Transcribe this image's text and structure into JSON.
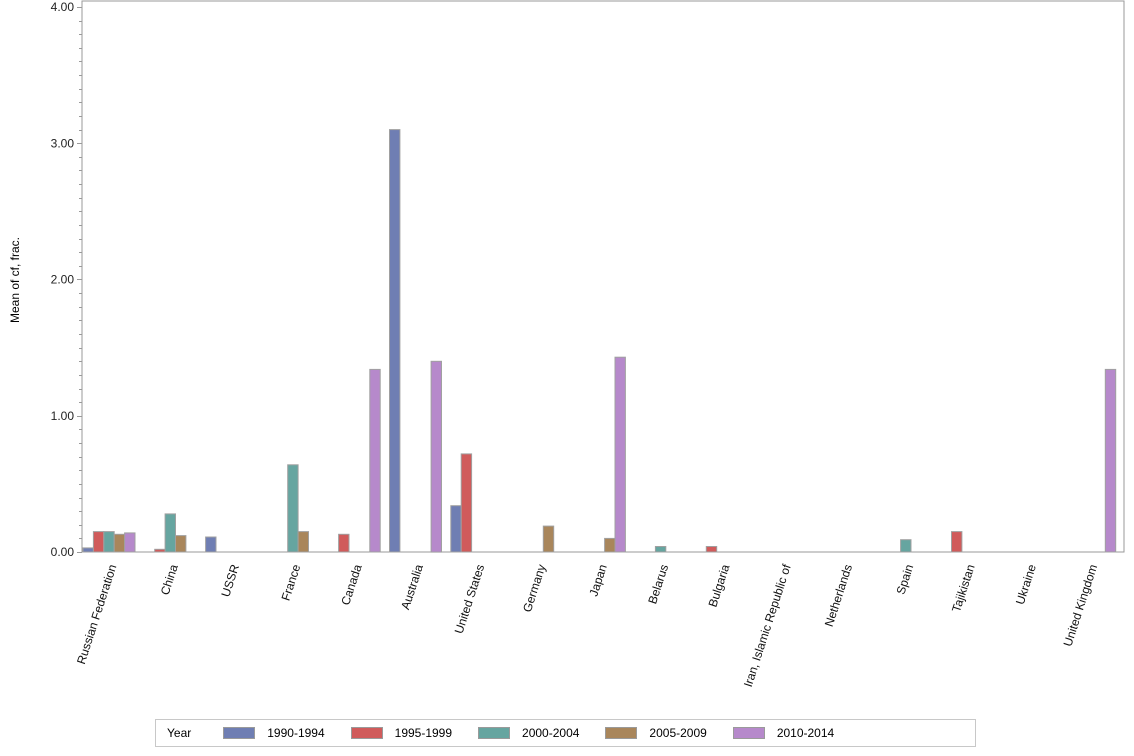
{
  "chart_data": {
    "type": "bar",
    "title": "",
    "xlabel": "",
    "ylabel": "Mean of cf, frac.",
    "ylim": [
      0,
      4
    ],
    "yticks": [
      "0.00",
      "1.00",
      "2.00",
      "3.00",
      "4.00"
    ],
    "grid": false,
    "legend_position": "bottom",
    "legend_title": "Year",
    "categories": [
      "Russian Federation",
      "China",
      "USSR",
      "France",
      "Canada",
      "Australia",
      "United States",
      "Germany",
      "Japan",
      "Belarus",
      "Bulgaria",
      "Iran, Islamic Republic of",
      "Netherlands",
      "Spain",
      "Tajikistan",
      "Ukraine",
      "United Kingdom"
    ],
    "series": [
      {
        "name": "1990-1994",
        "color": "#6f7eb3",
        "values": [
          0.03,
          null,
          0.11,
          null,
          null,
          3.1,
          0.34,
          null,
          null,
          null,
          null,
          null,
          null,
          null,
          null,
          null,
          null
        ]
      },
      {
        "name": "1995-1999",
        "color": "#d05b5b",
        "values": [
          0.15,
          0.02,
          null,
          null,
          0.13,
          null,
          0.72,
          null,
          null,
          null,
          0.04,
          null,
          null,
          null,
          0.15,
          null,
          null
        ]
      },
      {
        "name": "2000-2004",
        "color": "#66a5a0",
        "values": [
          0.15,
          0.28,
          null,
          0.64,
          null,
          null,
          null,
          null,
          null,
          0.04,
          null,
          null,
          null,
          0.09,
          null,
          null,
          null
        ]
      },
      {
        "name": "2005-2009",
        "color": "#a9865b",
        "values": [
          0.13,
          0.12,
          null,
          0.15,
          null,
          null,
          null,
          0.19,
          0.1,
          null,
          null,
          null,
          null,
          null,
          null,
          null,
          null
        ]
      },
      {
        "name": "2010-2014",
        "color": "#b689cb",
        "values": [
          0.14,
          null,
          null,
          null,
          1.34,
          1.4,
          null,
          null,
          1.43,
          null,
          null,
          null,
          null,
          null,
          null,
          null,
          1.34
        ]
      }
    ]
  },
  "legend": {
    "title": "Year",
    "items": [
      {
        "label": "1990-1994",
        "color": "#6f7eb3"
      },
      {
        "label": "1995-1999",
        "color": "#d05b5b"
      },
      {
        "label": "2000-2004",
        "color": "#66a5a0"
      },
      {
        "label": "2005-2009",
        "color": "#a9865b"
      },
      {
        "label": "2010-2014",
        "color": "#b689cb"
      }
    ]
  }
}
